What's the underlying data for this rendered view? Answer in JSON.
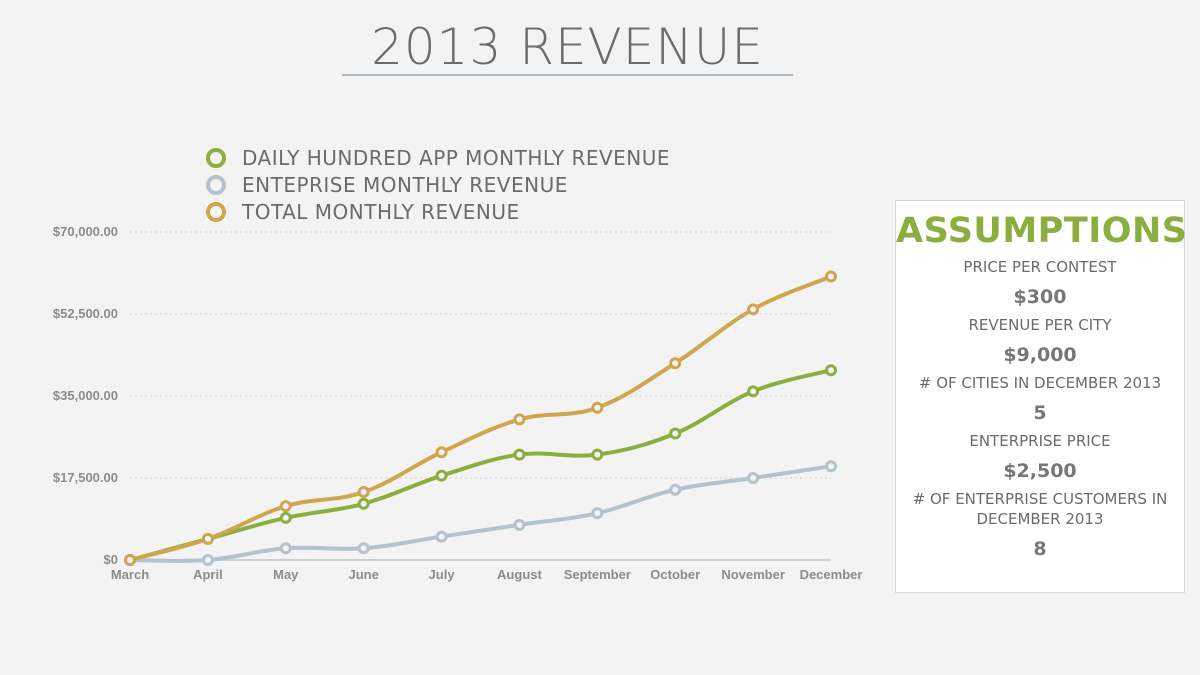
{
  "title": "2013 REVENUE",
  "legend": [
    {
      "label": "DAILY HUNDRED APP MONTHLY REVENUE",
      "color": "#8aaf3f"
    },
    {
      "label": "ENTEPRISE MONTHLY REVENUE",
      "color": "#b3c3cc"
    },
    {
      "label": "TOTAL MONTHLY REVENUE",
      "color": "#cfa64f"
    }
  ],
  "chart_data": {
    "type": "line",
    "title": "2013 REVENUE",
    "categories": [
      "March",
      "April",
      "May",
      "June",
      "July",
      "August",
      "September",
      "October",
      "November",
      "December"
    ],
    "series": [
      {
        "name": "DAILY HUNDRED APP MONTHLY REVENUE",
        "color": "#8aaf3f",
        "values": [
          0,
          4500,
          9000,
          12000,
          18000,
          22500,
          22500,
          27000,
          36000,
          40500
        ]
      },
      {
        "name": "ENTEPRISE MONTHLY REVENUE",
        "color": "#b3c3cc",
        "values": [
          0,
          0,
          2500,
          2500,
          5000,
          7500,
          10000,
          15000,
          17500,
          20000
        ]
      },
      {
        "name": "TOTAL MONTHLY REVENUE",
        "color": "#cfa64f",
        "values": [
          0,
          4500,
          11500,
          14500,
          23000,
          30000,
          32500,
          42000,
          53500,
          60500
        ]
      }
    ],
    "yticks": [
      0,
      17500,
      35000,
      52500,
      70000
    ],
    "ytick_labels": [
      "$0",
      "$17,500.00",
      "$35,000.00",
      "$52,500.00",
      "$70,000.00"
    ],
    "ylim": [
      0,
      70000
    ],
    "grid": true,
    "legend_position": "top-left"
  },
  "assumptions": {
    "title": "ASSUMPTIONS",
    "items": [
      {
        "label": "PRICE PER CONTEST",
        "value": "$300"
      },
      {
        "label": "REVENUE PER CITY",
        "value": "$9,000"
      },
      {
        "label": "# OF CITIES IN DECEMBER 2013",
        "value": "5"
      },
      {
        "label": "ENTERPRISE PRICE",
        "value": "$2,500"
      },
      {
        "label": "# OF ENTERPRISE CUSTOMERS IN DECEMBER 2013",
        "value": "8"
      }
    ]
  }
}
